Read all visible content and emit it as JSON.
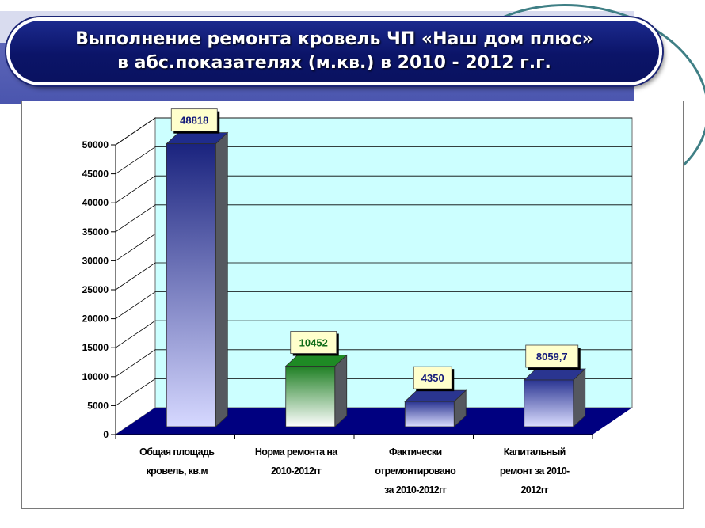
{
  "slide": {
    "title_line1": "Выполнение ремонта кровель ЧП «Наш дом плюс»",
    "title_line2": "в абс.показателях (м.кв.) в 2010 - 2012 г.г."
  },
  "chart_data": {
    "type": "bar",
    "categories": [
      [
        "Общая площадь",
        "кровель, кв.м"
      ],
      [
        "Норма ремонта на",
        "2010-2012гг"
      ],
      [
        "Фактически",
        "отремонтировано",
        "за 2010-2012гг"
      ],
      [
        "Капитальный",
        "ремонт за 2010-",
        "2012гг"
      ]
    ],
    "values": [
      48818,
      10452,
      4350,
      8059.7
    ],
    "value_labels": [
      "48818",
      "10452",
      "4350",
      "8059,7"
    ],
    "bar_colors": [
      "#1f2c8c",
      "#1e8a24",
      "#2a3590",
      "#2a3590"
    ],
    "label_colors": [
      "#141a7a",
      "#0d6b17",
      "#141a7a",
      "#141a7a"
    ],
    "yticks": [
      "0",
      "5000",
      "10000",
      "15000",
      "20000",
      "25000",
      "30000",
      "35000",
      "40000",
      "45000",
      "50000"
    ],
    "ylim": [
      0,
      50000
    ],
    "grid": true,
    "wall_color": "#ccffff",
    "floor_color": "#000080"
  }
}
